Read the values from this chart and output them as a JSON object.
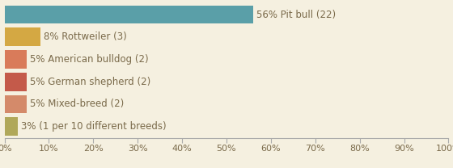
{
  "categories": [
    "56% Pit bull (22)",
    "8% Rottweiler (3)",
    "5% American bulldog (2)",
    "5% German shepherd (2)",
    "5% Mixed-breed (2)",
    "3% (1 per 10 different breeds)"
  ],
  "values": [
    56,
    8,
    5,
    5,
    5,
    3
  ],
  "bar_colors": [
    "#5a9fa8",
    "#d4a843",
    "#d97b5a",
    "#c45a4a",
    "#d48a6a",
    "#b0a85a"
  ],
  "background_color": "#f5f0e0",
  "text_color": "#7a6a4a",
  "xlabel_ticks": [
    "0%",
    "10%",
    "20%",
    "30%",
    "40%",
    "50%",
    "60%",
    "70%",
    "80%",
    "90%",
    "100%"
  ],
  "xlabel_vals": [
    0,
    10,
    20,
    30,
    40,
    50,
    60,
    70,
    80,
    90,
    100
  ],
  "bar_height": 0.82,
  "xlim": [
    0,
    100
  ],
  "font_size": 8.5,
  "tick_font_size": 8.0
}
